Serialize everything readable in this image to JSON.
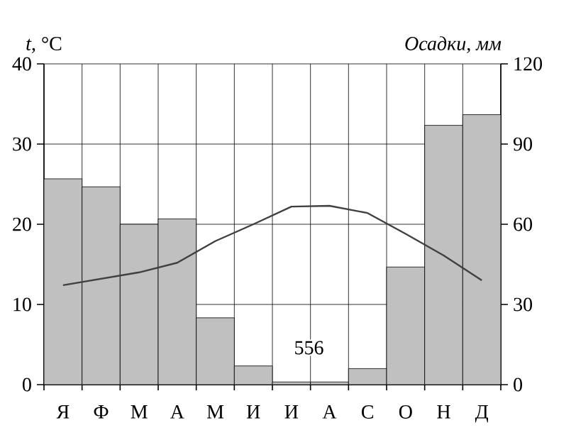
{
  "chart_data": {
    "type": "bar",
    "ylabel": "*t*, °C",
    "y2label": "Осадки, мм",
    "categories": [
      "Я",
      "Ф",
      "М",
      "А",
      "М",
      "И",
      "И",
      "А",
      "С",
      "О",
      "Н",
      "Д"
    ],
    "series": [
      {
        "axis": "y2",
        "color": "#c0c0c0",
        "values": [
          77,
          74,
          60,
          62,
          25,
          7,
          1,
          1,
          6,
          44,
          97,
          101
        ]
      },
      {
        "type": "line",
        "axis": "y",
        "color": "#404040",
        "line_style": "solid",
        "values": [
          12.4,
          13.2,
          14.0,
          15.2,
          17.9,
          20.0,
          22.2,
          22.3,
          21.4,
          18.8,
          16.1,
          13.0
        ]
      }
    ],
    "ylim": [
      0,
      40
    ],
    "yticks": [
      0,
      10,
      20,
      30,
      40
    ],
    "y2lim": [
      0,
      120
    ],
    "y2ticks": [
      0,
      30,
      60,
      90,
      120
    ],
    "grid": true,
    "marker": "none",
    "annotations": [
      "556"
    ]
  }
}
